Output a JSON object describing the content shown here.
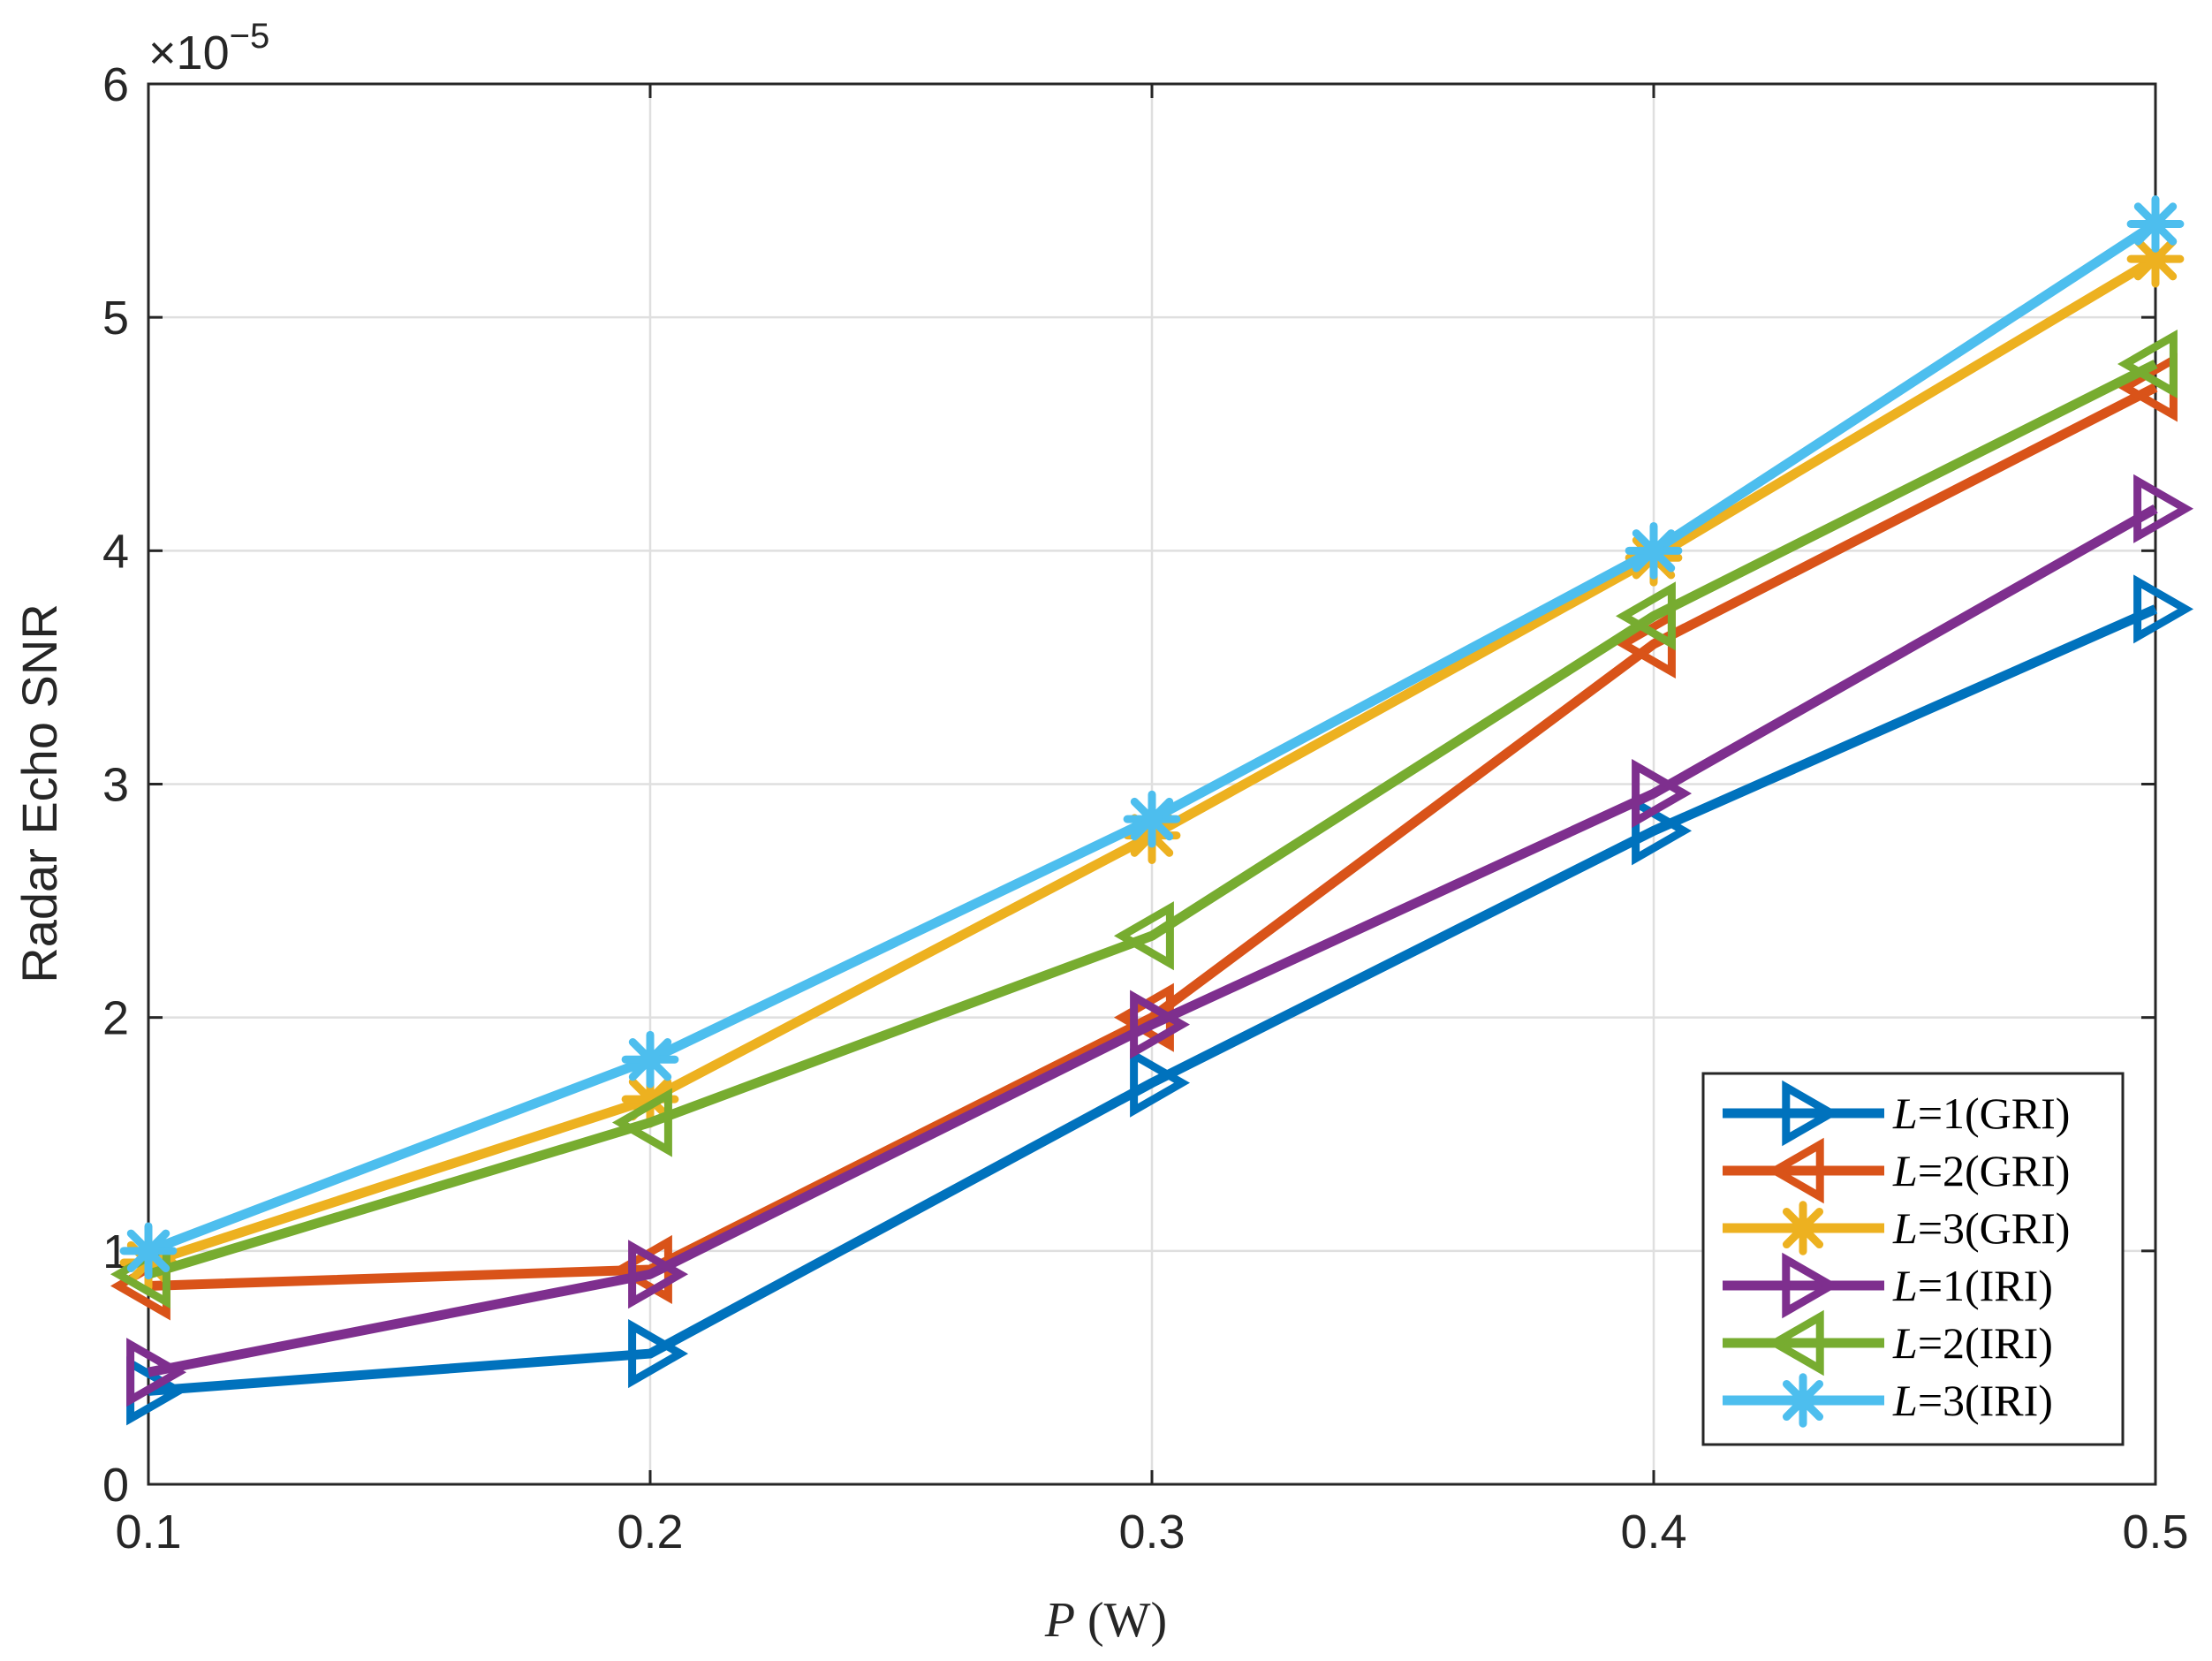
{
  "chart_data": {
    "type": "line",
    "title": "",
    "xlabel_var": "P",
    "xlabel_unit": " (W)",
    "ylabel": "Radar Echo SNR",
    "y_exponent_base": "×10",
    "y_exponent_power": "−5",
    "x": [
      0.1,
      0.2,
      0.3,
      0.4,
      0.5
    ],
    "xlim": [
      0.1,
      0.5
    ],
    "ylim": [
      0,
      6
    ],
    "x_ticks": [
      0.1,
      0.2,
      0.3,
      0.4,
      0.5
    ],
    "x_tick_labels": [
      "0.1",
      "0.2",
      "0.3",
      "0.4",
      "0.5"
    ],
    "y_ticks": [
      0,
      1,
      2,
      3,
      4,
      5,
      6
    ],
    "y_tick_labels": [
      "0",
      "1",
      "2",
      "3",
      "4",
      "5",
      "6"
    ],
    "grid": true,
    "legend_position": "bottom-right",
    "series": [
      {
        "name": "L=1(GRI)",
        "var": "L",
        "rest": "=1(GRI)",
        "color": "#0072BD",
        "marker": "triangle-right",
        "values": [
          0.4,
          0.56,
          1.72,
          2.8,
          3.75
        ]
      },
      {
        "name": "L=2(GRI)",
        "var": "L",
        "rest": "=2(GRI)",
        "color": "#D95319",
        "marker": "triangle-left",
        "values": [
          0.85,
          0.92,
          2.0,
          3.6,
          4.7
        ]
      },
      {
        "name": "L=3(GRI)",
        "var": "L",
        "rest": "=3(GRI)",
        "color": "#EDB120",
        "marker": "asterisk",
        "values": [
          0.95,
          1.65,
          2.78,
          3.97,
          5.25
        ]
      },
      {
        "name": "L=1(IRI)",
        "var": "L",
        "rest": "=1(IRI)",
        "color": "#7E2F8E",
        "marker": "triangle-right",
        "values": [
          0.48,
          0.9,
          1.97,
          2.96,
          4.18
        ]
      },
      {
        "name": "L=2(IRI)",
        "var": "L",
        "rest": "=2(IRI)",
        "color": "#77AC30",
        "marker": "triangle-left",
        "values": [
          0.9,
          1.55,
          2.35,
          3.72,
          4.8
        ]
      },
      {
        "name": "L=3(IRI)",
        "var": "L",
        "rest": "=3(IRI)",
        "color": "#4DBEEE",
        "marker": "asterisk",
        "values": [
          1.0,
          1.82,
          2.85,
          4.0,
          5.4
        ]
      }
    ]
  }
}
